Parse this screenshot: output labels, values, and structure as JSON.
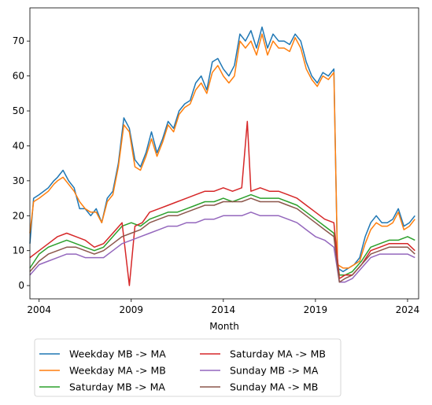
{
  "chart_data": {
    "type": "line",
    "title": "",
    "xlabel": "Month",
    "ylabel": "",
    "xlim": [
      2003.5,
      2024.6
    ],
    "ylim": [
      -3.8,
      79.5
    ],
    "x_ticks": [
      {
        "value": 2004,
        "label": "2004"
      },
      {
        "value": 2009,
        "label": "2009"
      },
      {
        "value": 2014,
        "label": "2014"
      },
      {
        "value": 2019,
        "label": "2019"
      },
      {
        "value": 2024,
        "label": "2024"
      }
    ],
    "y_ticks": [
      0,
      10,
      20,
      30,
      40,
      50,
      60,
      70
    ],
    "grid": false,
    "legend_placement": "below",
    "legend_columns": 2,
    "series": [
      {
        "name": "Weekday MB -> MA",
        "color": "#1f77b4",
        "x": [
          2003.5,
          2003.7,
          2004.0,
          2004.5,
          2004.8,
          2005.0,
          2005.3,
          2005.6,
          2005.9,
          2006.2,
          2006.5,
          2006.8,
          2007.1,
          2007.4,
          2007.7,
          2008.0,
          2008.3,
          2008.6,
          2008.9,
          2009.2,
          2009.5,
          2009.8,
          2010.1,
          2010.4,
          2010.7,
          2011.0,
          2011.3,
          2011.6,
          2011.9,
          2012.2,
          2012.5,
          2012.8,
          2013.1,
          2013.4,
          2013.7,
          2014.0,
          2014.3,
          2014.6,
          2014.9,
          2015.2,
          2015.5,
          2015.8,
          2016.1,
          2016.4,
          2016.7,
          2017.0,
          2017.3,
          2017.6,
          2017.9,
          2018.2,
          2018.5,
          2018.8,
          2019.1,
          2019.4,
          2019.7,
          2020.0,
          2020.2,
          2020.5,
          2020.8,
          2021.1,
          2021.4,
          2021.7,
          2022.0,
          2022.3,
          2022.6,
          2022.9,
          2023.2,
          2023.5,
          2023.8,
          2024.1,
          2024.4
        ],
        "y": [
          12,
          25,
          26,
          28,
          30,
          31,
          33,
          30,
          28,
          22,
          22,
          20,
          22,
          18,
          25,
          27,
          35,
          48,
          45,
          36,
          34,
          38,
          44,
          38,
          42,
          47,
          45,
          50,
          52,
          53,
          58,
          60,
          56,
          64,
          65,
          62,
          60,
          63,
          72,
          70,
          73,
          68,
          74,
          68,
          72,
          70,
          70,
          69,
          72,
          70,
          64,
          60,
          58,
          61,
          60,
          62,
          5,
          4,
          5,
          6,
          8,
          14,
          18,
          20,
          18,
          18,
          19,
          22,
          17,
          18,
          20
        ]
      },
      {
        "name": "Weekday MA -> MB",
        "color": "#ff7f0e",
        "x": [
          2003.5,
          2003.7,
          2004.0,
          2004.5,
          2004.8,
          2005.0,
          2005.3,
          2005.6,
          2005.9,
          2006.2,
          2006.5,
          2006.8,
          2007.1,
          2007.4,
          2007.7,
          2008.0,
          2008.3,
          2008.6,
          2008.9,
          2009.2,
          2009.5,
          2009.8,
          2010.1,
          2010.4,
          2010.7,
          2011.0,
          2011.3,
          2011.6,
          2011.9,
          2012.2,
          2012.5,
          2012.8,
          2013.1,
          2013.4,
          2013.7,
          2014.0,
          2014.3,
          2014.6,
          2014.9,
          2015.2,
          2015.5,
          2015.8,
          2016.1,
          2016.4,
          2016.7,
          2017.0,
          2017.3,
          2017.6,
          2017.9,
          2018.2,
          2018.5,
          2018.8,
          2019.1,
          2019.4,
          2019.7,
          2020.0,
          2020.2,
          2020.5,
          2020.8,
          2021.1,
          2021.4,
          2021.7,
          2022.0,
          2022.3,
          2022.6,
          2022.9,
          2023.2,
          2023.5,
          2023.8,
          2024.1,
          2024.4
        ],
        "y": [
          15,
          24,
          25,
          27,
          29,
          30,
          31,
          29,
          27,
          24,
          22,
          21,
          21,
          18,
          24,
          26,
          34,
          46,
          44,
          34,
          33,
          37,
          42,
          37,
          41,
          46,
          44,
          49,
          51,
          52,
          56,
          58,
          55,
          61,
          63,
          60,
          58,
          60,
          70,
          68,
          70,
          66,
          72,
          66,
          70,
          68,
          68,
          67,
          71,
          68,
          62,
          59,
          57,
          60,
          59,
          61,
          6,
          5,
          5,
          6,
          7,
          12,
          16,
          18,
          17,
          17,
          18,
          21,
          16,
          17,
          19
        ]
      },
      {
        "name": "Saturday MB -> MA",
        "color": "#2ca02c",
        "x": [
          2003.5,
          2004.0,
          2004.5,
          2005.0,
          2005.5,
          2006.0,
          2006.5,
          2007.0,
          2007.5,
          2008.0,
          2008.5,
          2009.0,
          2009.5,
          2010.0,
          2010.5,
          2011.0,
          2011.5,
          2012.0,
          2012.5,
          2013.0,
          2013.5,
          2014.0,
          2014.5,
          2015.0,
          2015.5,
          2016.0,
          2016.5,
          2017.0,
          2017.5,
          2018.0,
          2018.5,
          2019.0,
          2019.5,
          2020.0,
          2020.3,
          2020.6,
          2021.0,
          2021.5,
          2022.0,
          2022.5,
          2023.0,
          2023.5,
          2024.0,
          2024.4
        ],
        "y": [
          5,
          9,
          11,
          12,
          13,
          12,
          11,
          10,
          11,
          14,
          17,
          18,
          17,
          19,
          20,
          21,
          21,
          22,
          23,
          24,
          24,
          25,
          24,
          25,
          26,
          25,
          25,
          25,
          24,
          23,
          21,
          19,
          17,
          15,
          3,
          3,
          4,
          7,
          11,
          12,
          13,
          13,
          14,
          13
        ]
      },
      {
        "name": "Saturday MA -> MB",
        "color": "#d62728",
        "x": [
          2003.5,
          2004.0,
          2004.5,
          2005.0,
          2005.5,
          2006.0,
          2006.5,
          2007.0,
          2007.5,
          2008.0,
          2008.5,
          2008.9,
          2009.2,
          2009.6,
          2010.0,
          2010.5,
          2011.0,
          2011.5,
          2012.0,
          2012.5,
          2013.0,
          2013.5,
          2014.0,
          2014.5,
          2015.0,
          2015.3,
          2015.5,
          2016.0,
          2016.5,
          2017.0,
          2017.5,
          2018.0,
          2018.5,
          2019.0,
          2019.5,
          2020.0,
          2020.3,
          2020.6,
          2021.0,
          2021.5,
          2022.0,
          2022.5,
          2023.0,
          2023.5,
          2024.0,
          2024.4
        ],
        "y": [
          8,
          10,
          12,
          14,
          15,
          14,
          13,
          11,
          12,
          15,
          18,
          0,
          17,
          18,
          21,
          22,
          23,
          24,
          25,
          26,
          27,
          27,
          28,
          27,
          28,
          47,
          27,
          28,
          27,
          27,
          26,
          25,
          23,
          21,
          19,
          18,
          2,
          3,
          3,
          6,
          10,
          11,
          12,
          12,
          12,
          10
        ]
      },
      {
        "name": "Sunday MB -> MA",
        "color": "#9467bd",
        "x": [
          2003.5,
          2004.0,
          2004.5,
          2005.0,
          2005.5,
          2006.0,
          2006.5,
          2007.0,
          2007.5,
          2008.0,
          2008.5,
          2009.0,
          2009.5,
          2010.0,
          2010.5,
          2011.0,
          2011.5,
          2012.0,
          2012.5,
          2013.0,
          2013.5,
          2014.0,
          2014.5,
          2015.0,
          2015.5,
          2016.0,
          2016.5,
          2017.0,
          2017.5,
          2018.0,
          2018.5,
          2019.0,
          2019.5,
          2020.0,
          2020.3,
          2020.6,
          2021.0,
          2021.5,
          2022.0,
          2022.5,
          2023.0,
          2023.5,
          2024.0,
          2024.4
        ],
        "y": [
          3,
          6,
          7,
          8,
          9,
          9,
          8,
          8,
          8,
          10,
          12,
          13,
          14,
          15,
          16,
          17,
          17,
          18,
          18,
          19,
          19,
          20,
          20,
          20,
          21,
          20,
          20,
          20,
          19,
          18,
          16,
          14,
          13,
          11,
          1,
          1,
          2,
          5,
          8,
          9,
          9,
          9,
          9,
          8
        ]
      },
      {
        "name": "Sunday MA -> MB",
        "color": "#8c564b",
        "x": [
          2003.5,
          2004.0,
          2004.5,
          2005.0,
          2005.5,
          2006.0,
          2006.5,
          2007.0,
          2007.5,
          2008.0,
          2008.5,
          2009.0,
          2009.5,
          2010.0,
          2010.5,
          2011.0,
          2011.5,
          2012.0,
          2012.5,
          2013.0,
          2013.5,
          2014.0,
          2014.5,
          2015.0,
          2015.5,
          2016.0,
          2016.5,
          2017.0,
          2017.5,
          2018.0,
          2018.5,
          2019.0,
          2019.5,
          2020.0,
          2020.3,
          2020.6,
          2021.0,
          2021.5,
          2022.0,
          2022.5,
          2023.0,
          2023.5,
          2024.0,
          2024.4
        ],
        "y": [
          4,
          7,
          9,
          10,
          11,
          11,
          10,
          9,
          10,
          12,
          14,
          15,
          16,
          18,
          19,
          20,
          20,
          21,
          22,
          23,
          23,
          24,
          24,
          24,
          25,
          24,
          24,
          24,
          23,
          22,
          20,
          18,
          16,
          14,
          1,
          2,
          3,
          6,
          9,
          10,
          11,
          11,
          11,
          9
        ]
      }
    ]
  }
}
